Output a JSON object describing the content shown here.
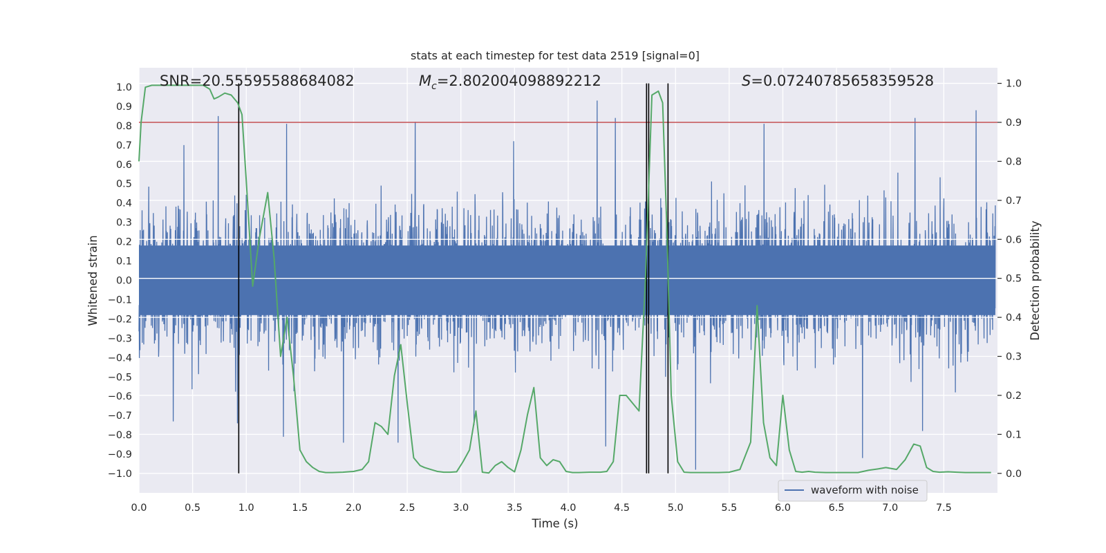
{
  "chart_data": {
    "type": "line",
    "title": "stats at each timestep for test data 2519 [signal=0]",
    "xlabel": "Time (s)",
    "ylabel_left": "Whitened strain",
    "ylabel_right": "Detection probability",
    "xlim": [
      0.0,
      8.0
    ],
    "ylim_left": [
      -1.1,
      1.1
    ],
    "ylim_right": [
      -0.05,
      1.04
    ],
    "x_ticks": [
      "0.0",
      "0.5",
      "1.0",
      "1.5",
      "2.0",
      "2.5",
      "3.0",
      "3.5",
      "4.0",
      "4.5",
      "5.0",
      "5.5",
      "6.0",
      "6.5",
      "7.0",
      "7.5"
    ],
    "y_ticks_left": [
      "1.0",
      "0.9",
      "0.8",
      "0.7",
      "0.6",
      "0.5",
      "0.4",
      "0.3",
      "0.2",
      "0.1",
      "0.0",
      "−0.1",
      "−0.2",
      "−0.3",
      "−0.4",
      "−0.5",
      "−0.6",
      "−0.7",
      "−0.8",
      "−0.9",
      "−1.0"
    ],
    "y_ticks_right": [
      "1.0",
      "0.9",
      "0.8",
      "0.7",
      "0.6",
      "0.5",
      "0.4",
      "0.3",
      "0.2",
      "0.1",
      "0.0"
    ],
    "grid": true,
    "legend": {
      "placement": "bottom-right",
      "entries": [
        "waveform with noise"
      ]
    },
    "annotations": {
      "snr": "SNR=20.55595588684082",
      "mc_symbol": "M",
      "mc_sub": "c",
      "mc_value": "=2.802004098892212",
      "s_symbol": "S",
      "s_value": "=0.07240785658359528"
    },
    "threshold_right": 0.9,
    "vertical_lines_x": [
      0.93,
      4.73,
      4.75,
      4.93
    ],
    "waveform": {
      "name": "waveform with noise",
      "color": "#4c72b0",
      "samples": 4096,
      "core_amplitude": 0.5,
      "spike_peaks": [
        {
          "x": 0.74,
          "y": 0.85
        },
        {
          "x": 0.42,
          "y": 0.7
        },
        {
          "x": 1.38,
          "y": 0.81
        },
        {
          "x": 2.58,
          "y": 0.82
        },
        {
          "x": 4.28,
          "y": 0.93
        },
        {
          "x": 4.45,
          "y": 0.84
        },
        {
          "x": 5.84,
          "y": 0.81
        },
        {
          "x": 7.25,
          "y": 0.84
        },
        {
          "x": 7.82,
          "y": 0.88
        },
        {
          "x": 3.5,
          "y": 0.72
        },
        {
          "x": 0.32,
          "y": -0.73
        },
        {
          "x": 0.92,
          "y": -0.74
        },
        {
          "x": 1.35,
          "y": -0.81
        },
        {
          "x": 1.91,
          "y": -0.84
        },
        {
          "x": 2.42,
          "y": -0.84
        },
        {
          "x": 4.36,
          "y": -0.86
        },
        {
          "x": 5.2,
          "y": -0.98
        },
        {
          "x": 6.76,
          "y": -0.92
        },
        {
          "x": 7.32,
          "y": -0.78
        },
        {
          "x": 3.13,
          "y": -0.75
        }
      ]
    },
    "probability": {
      "color": "#55a868",
      "x": [
        0.0,
        0.02,
        0.06,
        0.12,
        0.2,
        0.3,
        0.4,
        0.5,
        0.6,
        0.66,
        0.7,
        0.74,
        0.8,
        0.86,
        0.92,
        0.96,
        1.0,
        1.06,
        1.12,
        1.2,
        1.26,
        1.32,
        1.38,
        1.44,
        1.5,
        1.56,
        1.62,
        1.68,
        1.74,
        1.8,
        1.9,
        2.0,
        2.08,
        2.14,
        2.2,
        2.26,
        2.32,
        2.38,
        2.44,
        2.5,
        2.56,
        2.62,
        2.66,
        2.72,
        2.78,
        2.84,
        2.9,
        2.96,
        3.02,
        3.08,
        3.14,
        3.2,
        3.26,
        3.32,
        3.38,
        3.44,
        3.5,
        3.56,
        3.62,
        3.68,
        3.74,
        3.8,
        3.86,
        3.92,
        3.98,
        4.04,
        4.1,
        4.2,
        4.3,
        4.36,
        4.42,
        4.48,
        4.54,
        4.6,
        4.66,
        4.72,
        4.78,
        4.84,
        4.88,
        4.92,
        4.96,
        5.02,
        5.08,
        5.14,
        5.2,
        5.3,
        5.4,
        5.5,
        5.6,
        5.7,
        5.76,
        5.82,
        5.88,
        5.94,
        6.0,
        6.06,
        6.12,
        6.18,
        6.24,
        6.3,
        6.4,
        6.5,
        6.6,
        6.7,
        6.8,
        6.9,
        6.96,
        7.06,
        7.14,
        7.22,
        7.28,
        7.34,
        7.4,
        7.46,
        7.54,
        7.62,
        7.7,
        7.8,
        7.88,
        7.94
      ],
      "y": [
        0.8,
        0.9,
        0.99,
        0.995,
        0.995,
        0.995,
        0.995,
        0.995,
        0.995,
        0.985,
        0.96,
        0.965,
        0.975,
        0.97,
        0.95,
        0.92,
        0.75,
        0.48,
        0.6,
        0.72,
        0.55,
        0.3,
        0.4,
        0.25,
        0.06,
        0.03,
        0.015,
        0.005,
        0.002,
        0.002,
        0.003,
        0.005,
        0.01,
        0.03,
        0.13,
        0.12,
        0.1,
        0.25,
        0.33,
        0.18,
        0.04,
        0.02,
        0.015,
        0.01,
        0.005,
        0.003,
        0.003,
        0.004,
        0.03,
        0.06,
        0.16,
        0.003,
        0.001,
        0.02,
        0.03,
        0.015,
        0.004,
        0.06,
        0.15,
        0.22,
        0.04,
        0.02,
        0.035,
        0.03,
        0.005,
        0.002,
        0.002,
        0.003,
        0.003,
        0.005,
        0.03,
        0.2,
        0.2,
        0.18,
        0.16,
        0.5,
        0.97,
        0.98,
        0.95,
        0.62,
        0.2,
        0.03,
        0.003,
        0.002,
        0.002,
        0.002,
        0.002,
        0.003,
        0.01,
        0.08,
        0.43,
        0.13,
        0.04,
        0.02,
        0.2,
        0.06,
        0.005,
        0.003,
        0.005,
        0.003,
        0.002,
        0.002,
        0.002,
        0.002,
        0.008,
        0.012,
        0.015,
        0.01,
        0.035,
        0.075,
        0.07,
        0.015,
        0.005,
        0.003,
        0.004,
        0.003,
        0.002,
        0.002,
        0.002,
        0.002
      ]
    },
    "colors": {
      "background": "#eaeaf2",
      "grid": "#ffffff",
      "threshold": "#c44e52",
      "vline": "#000000"
    }
  }
}
